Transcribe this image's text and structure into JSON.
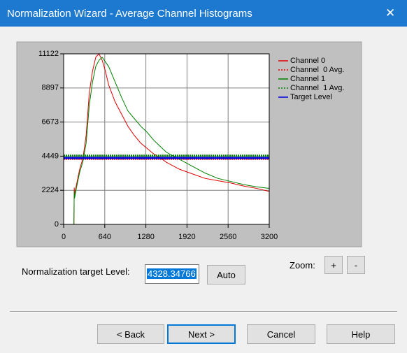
{
  "window": {
    "title": "Normalization Wizard - Average Channel Histograms",
    "close": "✕"
  },
  "chart_data": {
    "type": "line",
    "x": [
      0,
      160,
      165,
      170,
      200,
      250,
      300,
      350,
      400,
      450,
      500,
      550,
      600,
      650,
      700,
      800,
      900,
      1000,
      1100,
      1200,
      1300,
      1400,
      1500,
      1600,
      1800,
      2000,
      2200,
      2400,
      2600,
      2800,
      3000,
      3200
    ],
    "series": [
      {
        "name": "Channel 0",
        "color": "#e00000",
        "values": [
          0,
          0,
          2400,
          1900,
          2600,
          3600,
          4300,
          5800,
          8600,
          10000,
          10900,
          11122,
          10700,
          10000,
          9100,
          8000,
          7200,
          6400,
          5800,
          5300,
          4950,
          4600,
          4350,
          4050,
          3600,
          3300,
          3000,
          2850,
          2700,
          2500,
          2350,
          2150
        ]
      },
      {
        "name": "Channel  0 Avg.",
        "color": "#e00000",
        "dashed": true,
        "value": 4280
      },
      {
        "name": "Channel 1",
        "color": "#008000",
        "values": [
          0,
          0,
          2200,
          1700,
          2400,
          3400,
          4100,
          5300,
          7800,
          9300,
          10300,
          10700,
          10900,
          10600,
          10300,
          9300,
          8300,
          7400,
          6900,
          6400,
          6000,
          5500,
          5100,
          4700,
          4250,
          3800,
          3350,
          3000,
          2800,
          2600,
          2450,
          2350
        ]
      },
      {
        "name": "Channel  1 Avg.",
        "color": "#008000",
        "dashed": true,
        "value": 4480
      },
      {
        "name": "Target Level",
        "color": "#0000e0",
        "value": 4328.34766
      }
    ],
    "xlim": [
      0,
      3200
    ],
    "xticks": [
      0,
      640,
      1280,
      1920,
      2560,
      3200
    ],
    "ylim": [
      0,
      11122
    ],
    "yticks": [
      0,
      2224,
      4449,
      6673,
      8897,
      11122
    ],
    "grid": true
  },
  "form": {
    "target_label": "Normalization target Level:",
    "auto": "Auto",
    "zoom": "Zoom:",
    "zoom_in": "+",
    "zoom_out": "-"
  },
  "buttons": {
    "back": "< Back",
    "next": "Next >",
    "cancel": "Cancel",
    "help": "Help"
  }
}
